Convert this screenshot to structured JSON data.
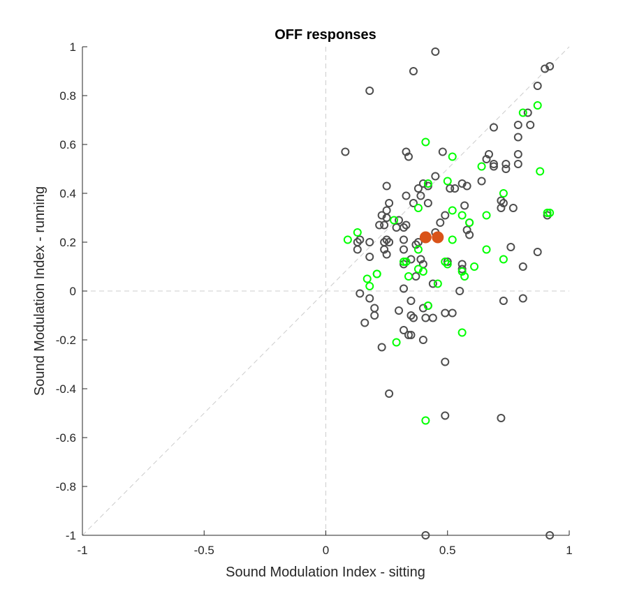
{
  "chart_data": {
    "type": "scatter",
    "title": "OFF responses",
    "xlabel": "Sound Modulation Index -  sitting",
    "ylabel": "Sound Modulation Index - running",
    "xlim": [
      -1,
      1
    ],
    "ylim": [
      -1,
      1
    ],
    "xticks": [
      -1,
      -0.5,
      0,
      0.5,
      1
    ],
    "xtick_labels": [
      "-1",
      "-0.5",
      "0",
      "0.5",
      "1"
    ],
    "yticks": [
      -1,
      -0.8,
      -0.6,
      -0.4,
      -0.2,
      0,
      0.2,
      0.4,
      0.6,
      0.8,
      1
    ],
    "ytick_labels": [
      "-1",
      "-0.8",
      "-0.6",
      "-0.4",
      "-0.2",
      "0",
      "0.2",
      "0.4",
      "0.6",
      "0.8",
      "1"
    ],
    "grid": false,
    "reference_lines": [
      "x=0",
      "y=0",
      "y=x"
    ],
    "colors": {
      "gray": "#4d4d4d",
      "green": "#00ff00",
      "mean": "#d95319",
      "ref": "#cccccc",
      "axis": "#262626"
    },
    "series": [
      {
        "marker": "open-circle",
        "color": "#4d4d4d",
        "points": [
          [
            0.45,
            0.98
          ],
          [
            0.36,
            0.9
          ],
          [
            0.18,
            0.82
          ],
          [
            0.9,
            0.91
          ],
          [
            0.92,
            0.92
          ],
          [
            0.87,
            0.84
          ],
          [
            0.83,
            0.73
          ],
          [
            0.79,
            0.68
          ],
          [
            0.84,
            0.68
          ],
          [
            0.79,
            0.63
          ],
          [
            0.69,
            0.67
          ],
          [
            0.08,
            0.57
          ],
          [
            0.33,
            0.57
          ],
          [
            0.34,
            0.55
          ],
          [
            0.48,
            0.57
          ],
          [
            0.67,
            0.56
          ],
          [
            0.79,
            0.56
          ],
          [
            0.66,
            0.54
          ],
          [
            0.69,
            0.51
          ],
          [
            0.69,
            0.52
          ],
          [
            0.74,
            0.52
          ],
          [
            0.74,
            0.5
          ],
          [
            0.79,
            0.52
          ],
          [
            0.45,
            0.47
          ],
          [
            0.4,
            0.44
          ],
          [
            0.42,
            0.43
          ],
          [
            0.51,
            0.42
          ],
          [
            0.53,
            0.42
          ],
          [
            0.56,
            0.44
          ],
          [
            0.58,
            0.43
          ],
          [
            0.64,
            0.45
          ],
          [
            0.25,
            0.43
          ],
          [
            0.33,
            0.39
          ],
          [
            0.38,
            0.42
          ],
          [
            0.39,
            0.39
          ],
          [
            0.26,
            0.36
          ],
          [
            0.36,
            0.36
          ],
          [
            0.42,
            0.36
          ],
          [
            0.57,
            0.35
          ],
          [
            0.73,
            0.36
          ],
          [
            0.72,
            0.37
          ],
          [
            0.72,
            0.34
          ],
          [
            0.77,
            0.34
          ],
          [
            0.91,
            0.31
          ],
          [
            0.25,
            0.33
          ],
          [
            0.23,
            0.31
          ],
          [
            0.3,
            0.29
          ],
          [
            0.25,
            0.3
          ],
          [
            0.22,
            0.27
          ],
          [
            0.24,
            0.27
          ],
          [
            0.29,
            0.26
          ],
          [
            0.32,
            0.26
          ],
          [
            0.33,
            0.27
          ],
          [
            0.47,
            0.28
          ],
          [
            0.49,
            0.31
          ],
          [
            0.45,
            0.24
          ],
          [
            0.59,
            0.28
          ],
          [
            0.58,
            0.25
          ],
          [
            0.59,
            0.23
          ],
          [
            0.13,
            0.2
          ],
          [
            0.14,
            0.21
          ],
          [
            0.18,
            0.2
          ],
          [
            0.24,
            0.2
          ],
          [
            0.25,
            0.21
          ],
          [
            0.26,
            0.2
          ],
          [
            0.13,
            0.17
          ],
          [
            0.24,
            0.17
          ],
          [
            0.25,
            0.15
          ],
          [
            0.32,
            0.21
          ],
          [
            0.32,
            0.17
          ],
          [
            0.37,
            0.19
          ],
          [
            0.38,
            0.2
          ],
          [
            0.76,
            0.18
          ],
          [
            0.87,
            0.16
          ],
          [
            0.18,
            0.14
          ],
          [
            0.32,
            0.11
          ],
          [
            0.35,
            0.13
          ],
          [
            0.39,
            0.13
          ],
          [
            0.4,
            0.11
          ],
          [
            0.5,
            0.12
          ],
          [
            0.56,
            0.11
          ],
          [
            0.56,
            0.09
          ],
          [
            0.81,
            0.1
          ],
          [
            0.37,
            0.06
          ],
          [
            0.32,
            0.01
          ],
          [
            0.44,
            0.03
          ],
          [
            0.55,
            0.0
          ],
          [
            0.14,
            -0.01
          ],
          [
            0.18,
            -0.03
          ],
          [
            0.35,
            -0.04
          ],
          [
            0.42,
            -0.06
          ],
          [
            0.4,
            -0.07
          ],
          [
            0.73,
            -0.04
          ],
          [
            0.81,
            -0.03
          ],
          [
            0.2,
            -0.07
          ],
          [
            0.3,
            -0.08
          ],
          [
            0.49,
            -0.09
          ],
          [
            0.52,
            -0.09
          ],
          [
            0.2,
            -0.1
          ],
          [
            0.35,
            -0.1
          ],
          [
            0.36,
            -0.11
          ],
          [
            0.41,
            -0.11
          ],
          [
            0.44,
            -0.11
          ],
          [
            0.16,
            -0.13
          ],
          [
            0.32,
            -0.16
          ],
          [
            0.35,
            -0.18
          ],
          [
            0.34,
            -0.18
          ],
          [
            0.4,
            -0.2
          ],
          [
            0.23,
            -0.23
          ],
          [
            0.49,
            -0.29
          ],
          [
            0.26,
            -0.42
          ],
          [
            0.49,
            -0.51
          ],
          [
            0.72,
            -0.52
          ],
          [
            0.41,
            -1.0
          ],
          [
            0.92,
            -1.0
          ]
        ]
      },
      {
        "marker": "open-circle",
        "color": "#00ff00",
        "points": [
          [
            0.81,
            0.73
          ],
          [
            0.87,
            0.76
          ],
          [
            0.41,
            0.61
          ],
          [
            0.52,
            0.55
          ],
          [
            0.64,
            0.51
          ],
          [
            0.88,
            0.49
          ],
          [
            0.5,
            0.45
          ],
          [
            0.42,
            0.44
          ],
          [
            0.73,
            0.4
          ],
          [
            0.38,
            0.34
          ],
          [
            0.52,
            0.33
          ],
          [
            0.91,
            0.32
          ],
          [
            0.92,
            0.32
          ],
          [
            0.28,
            0.29
          ],
          [
            0.56,
            0.31
          ],
          [
            0.59,
            0.28
          ],
          [
            0.66,
            0.31
          ],
          [
            0.13,
            0.24
          ],
          [
            0.09,
            0.21
          ],
          [
            0.52,
            0.21
          ],
          [
            0.38,
            0.17
          ],
          [
            0.66,
            0.17
          ],
          [
            0.32,
            0.12
          ],
          [
            0.33,
            0.12
          ],
          [
            0.49,
            0.12
          ],
          [
            0.5,
            0.11
          ],
          [
            0.73,
            0.13
          ],
          [
            0.56,
            0.08
          ],
          [
            0.61,
            0.1
          ],
          [
            0.21,
            0.07
          ],
          [
            0.21,
            0.07
          ],
          [
            0.38,
            0.09
          ],
          [
            0.4,
            0.08
          ],
          [
            0.34,
            0.06
          ],
          [
            0.57,
            0.06
          ],
          [
            0.17,
            0.05
          ],
          [
            0.18,
            0.02
          ],
          [
            0.46,
            0.03
          ],
          [
            0.42,
            -0.06
          ],
          [
            0.29,
            -0.21
          ],
          [
            0.56,
            -0.17
          ],
          [
            0.41,
            -0.53
          ]
        ]
      },
      {
        "marker": "filled-circle",
        "color": "#d95319",
        "points": [
          [
            0.41,
            0.22
          ],
          [
            0.46,
            0.22
          ]
        ]
      }
    ]
  }
}
